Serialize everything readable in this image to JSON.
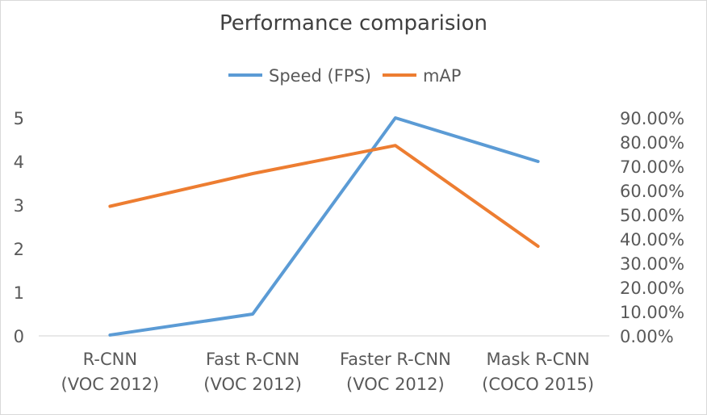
{
  "chart_data": {
    "type": "line",
    "title": "Performance comparision",
    "categories": [
      [
        "R-CNN",
        "(VOC 2012)"
      ],
      [
        "Fast R-CNN",
        "(VOC 2012)"
      ],
      [
        "Faster R-CNN",
        "(VOC 2012)"
      ],
      [
        "Mask R-CNN",
        "(COCO 2015)"
      ]
    ],
    "series": [
      {
        "name": "Speed (FPS)",
        "axis": "left",
        "color": "#5B9BD5",
        "values": [
          0.02,
          0.5,
          5,
          4
        ]
      },
      {
        "name": "mAP",
        "axis": "right",
        "color": "#ED7D31",
        "values": [
          0.535,
          0.67,
          0.786,
          0.37
        ]
      }
    ],
    "y_left": {
      "ylim": [
        0,
        5
      ],
      "ticks": [
        "0",
        "1",
        "2",
        "3",
        "4",
        "5"
      ]
    },
    "y_right": {
      "ylim": [
        0,
        0.9
      ],
      "ticks": [
        "0.00%",
        "10.00%",
        "20.00%",
        "30.00%",
        "40.00%",
        "50.00%",
        "60.00%",
        "70.00%",
        "80.00%",
        "90.00%"
      ]
    },
    "grid": false,
    "legend_position": "top"
  }
}
